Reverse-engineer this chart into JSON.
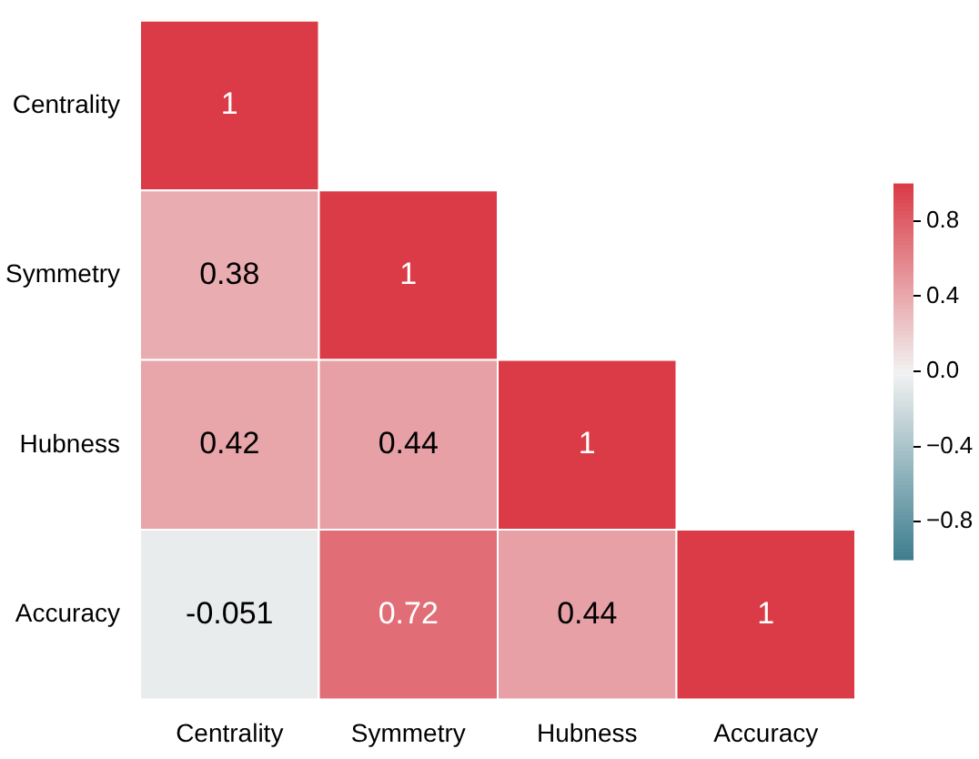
{
  "chart_data": {
    "type": "heatmap",
    "categories": [
      "Centrality",
      "Symmetry",
      "Hubness",
      "Accuracy"
    ],
    "y_categories": [
      "Centrality",
      "Symmetry",
      "Hubness",
      "Accuracy"
    ],
    "cells": [
      [
        1,
        null,
        null,
        null
      ],
      [
        0.38,
        1,
        null,
        null
      ],
      [
        0.42,
        0.44,
        1,
        null
      ],
      [
        -0.051,
        0.72,
        0.44,
        1
      ]
    ],
    "clim": [
      -1,
      1
    ],
    "cticks": [
      {
        "value": 0.8,
        "label": "0.8"
      },
      {
        "value": 0.4,
        "label": "0.4"
      },
      {
        "value": 0,
        "label": "0.0"
      },
      {
        "value": -0.4,
        "label": "−0.4"
      },
      {
        "value": -0.8,
        "label": "−0.8"
      }
    ],
    "data_labels": true
  }
}
